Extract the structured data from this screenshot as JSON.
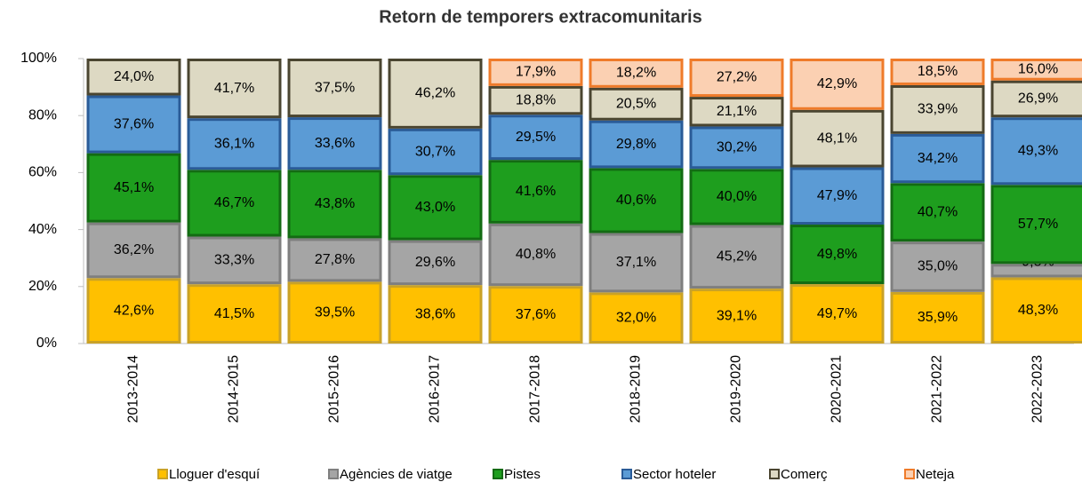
{
  "chart_data": {
    "type": "bar",
    "stacking": "percent",
    "title": "Retorn de temporers extracomunitaris",
    "categories": [
      "2013-2014",
      "2014-2015",
      "2015-2016",
      "2016-2017",
      "2017-2018",
      "2018-2019",
      "2019-2020",
      "2020-2021",
      "2021-2022",
      "2022-2023"
    ],
    "series": [
      {
        "name": "Lloguer d'esquí",
        "color": "#ffc000",
        "border": "#c9a227",
        "values": [
          42.6,
          41.5,
          39.5,
          38.6,
          37.6,
          32.0,
          39.1,
          49.7,
          35.9,
          48.3
        ],
        "value_labels": [
          "42,6%",
          "41,5%",
          "39,5%",
          "38,6%",
          "37,6%",
          "32,0%",
          "39,1%",
          "49,7%",
          "35,9%",
          "48,3%"
        ]
      },
      {
        "name": "Agències de viatge",
        "color": "#a5a5a5",
        "border": "#7f7f7f",
        "values": [
          36.2,
          33.3,
          27.8,
          29.6,
          40.8,
          37.1,
          45.2,
          null,
          35.0,
          9.8
        ],
        "value_labels": [
          "36,2%",
          "33,3%",
          "27,8%",
          "29,6%",
          "40,8%",
          "37,1%",
          "45,2%",
          null,
          "35,0%",
          "9,8%"
        ]
      },
      {
        "name": "Pistes",
        "color": "#1e9e1e",
        "border": "#136b13",
        "values": [
          45.1,
          46.7,
          43.8,
          43.0,
          41.6,
          40.6,
          40.0,
          49.8,
          40.7,
          57.7
        ],
        "value_labels": [
          "45,1%",
          "46,7%",
          "43,8%",
          "43,0%",
          "41,6%",
          "40,6%",
          "40,0%",
          "49,8%",
          "40,7%",
          "57,7%"
        ]
      },
      {
        "name": "Sector hoteler",
        "color": "#5b9bd5",
        "border": "#2a5b97",
        "values": [
          37.6,
          36.1,
          33.6,
          30.7,
          29.5,
          29.8,
          30.2,
          47.9,
          34.2,
          49.3
        ],
        "value_labels": [
          "37,6%",
          "36,1%",
          "33,6%",
          "30,7%",
          "29,5%",
          "29,8%",
          "30,2%",
          "47,9%",
          "34,2%",
          "49,3%"
        ]
      },
      {
        "name": "Comerç",
        "color": "#ddd9c3",
        "border": "#4a4530",
        "values": [
          24.0,
          41.7,
          37.5,
          46.2,
          18.8,
          20.5,
          21.1,
          48.1,
          33.9,
          26.9
        ],
        "value_labels": [
          "24,0%",
          "41,7%",
          "37,5%",
          "46,2%",
          "18,8%",
          "20,5%",
          "21,1%",
          "48,1%",
          "33,9%",
          "26,9%"
        ]
      },
      {
        "name": "Neteja",
        "color": "#fbd0b2",
        "border": "#ef7b2a",
        "values": [
          null,
          null,
          null,
          null,
          17.9,
          18.2,
          27.2,
          42.9,
          18.5,
          16.0
        ],
        "value_labels": [
          null,
          null,
          null,
          null,
          "17,9%",
          "18,2%",
          "27,2%",
          "42,9%",
          "18,5%",
          "16,0%"
        ]
      }
    ],
    "ylim": [
      0,
      100
    ],
    "yticks": [
      {
        "value": 0,
        "label": "0%"
      },
      {
        "value": 20,
        "label": "20%"
      },
      {
        "value": 40,
        "label": "40%"
      },
      {
        "value": 60,
        "label": "60%"
      },
      {
        "value": 80,
        "label": "80%"
      },
      {
        "value": 100,
        "label": "100%"
      }
    ],
    "legend": "bottom"
  }
}
